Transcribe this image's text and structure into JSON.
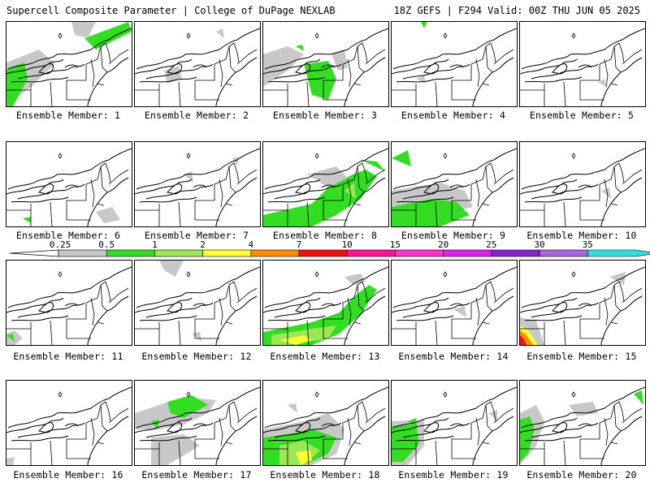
{
  "header": {
    "title_left": "Supercell Composite Parameter | College of DuPage NEXLAB",
    "title_right": "18Z GEFS | F294 Valid: 00Z THU JUN 05 2025"
  },
  "colors": {
    "0.25": "#c8c8c8",
    "0.5": "#33dd22",
    "1": "#99e855",
    "2": "#ffff33",
    "4": "#ff8c00",
    "7": "#ee1111",
    "10": "#ff1493",
    "15": "#ff33cc",
    "20": "#dd22ee",
    "25": "#8822cc",
    "30": "#aa66dd",
    "35": "#33dddd"
  },
  "colorbar": {
    "ticks": [
      "0.25",
      "0.5",
      "1",
      "2",
      "4",
      "7",
      "10",
      "15",
      "20",
      "25",
      "30",
      "35"
    ],
    "colors": [
      "#c8c8c8",
      "#33dd22",
      "#99e855",
      "#ffff33",
      "#ff8c00",
      "#ee1111",
      "#ff1493",
      "#ff33cc",
      "#dd22ee",
      "#8822cc",
      "#aa66dd",
      "#33dddd"
    ]
  },
  "members": [
    {
      "label": "Ensemble Member: 1"
    },
    {
      "label": "Ensemble Member: 2"
    },
    {
      "label": "Ensemble Member: 3"
    },
    {
      "label": "Ensemble Member: 4"
    },
    {
      "label": "Ensemble Member: 5"
    },
    {
      "label": "Ensemble Member: 6"
    },
    {
      "label": "Ensemble Member: 7"
    },
    {
      "label": "Ensemble Member: 8"
    },
    {
      "label": "Ensemble Member: 9"
    },
    {
      "label": "Ensemble Member: 10"
    },
    {
      "label": "Ensemble Member: 11"
    },
    {
      "label": "Ensemble Member: 12"
    },
    {
      "label": "Ensemble Member: 13"
    },
    {
      "label": "Ensemble Member: 14"
    },
    {
      "label": "Ensemble Member: 15"
    },
    {
      "label": "Ensemble Member: 16"
    },
    {
      "label": "Ensemble Member: 17"
    },
    {
      "label": "Ensemble Member: 18"
    },
    {
      "label": "Ensemble Member: 19"
    },
    {
      "label": "Ensemble Member: 20"
    }
  ]
}
